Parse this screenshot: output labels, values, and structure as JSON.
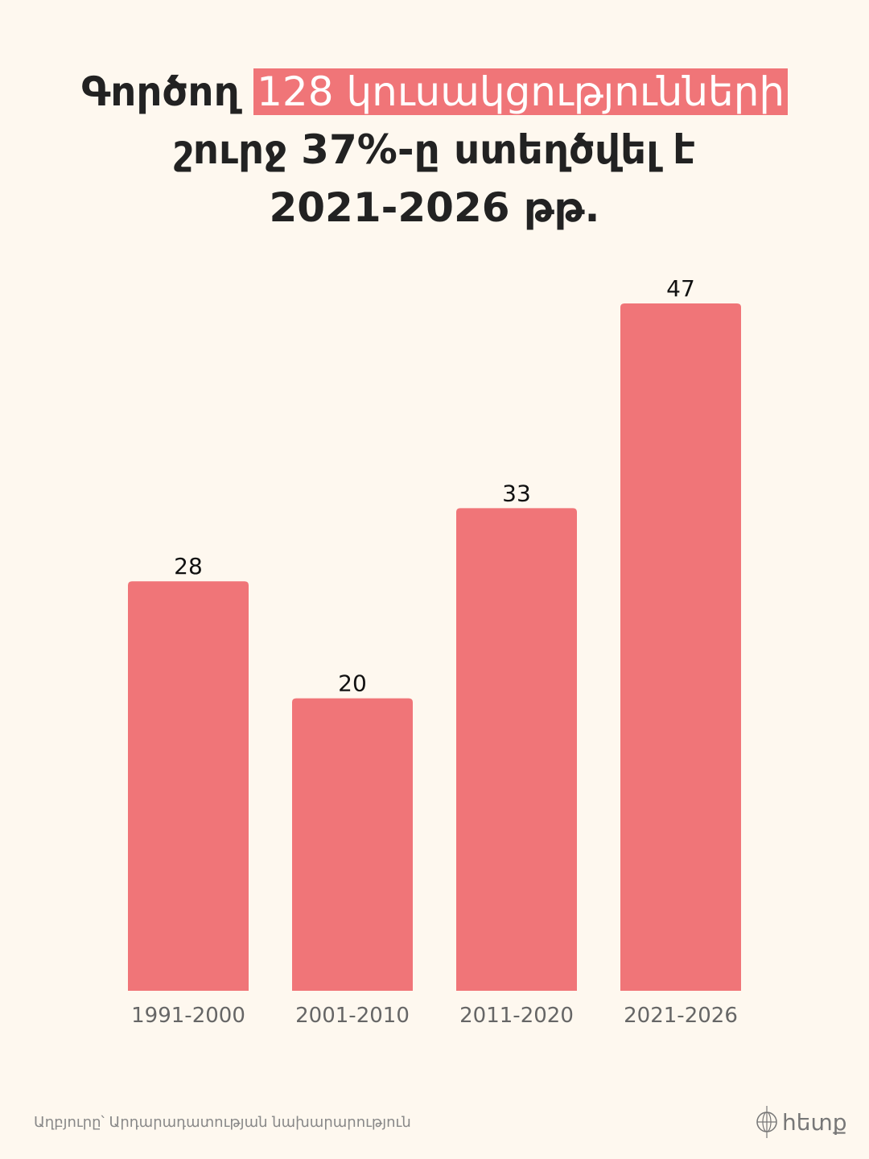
{
  "title": {
    "prefix": "Գործող",
    "highlight": "128 կուսակցությունների",
    "line2": "շուրջ 37%-ը ստեղծվել է",
    "line3": "2021-2026 թթ."
  },
  "chart_data": {
    "type": "bar",
    "categories": [
      "1991-2000",
      "2001-2010",
      "2011-2020",
      "2021-2026"
    ],
    "values": [
      28,
      20,
      33,
      47
    ],
    "ylim": [
      0,
      47
    ],
    "grid": false,
    "bar_color": "#f07578"
  },
  "footer": {
    "source": "Աղբյուրը՝  Արդարադատության նախարարություն"
  },
  "logo": {
    "text": "հետք"
  },
  "colors": {
    "background": "#fef8ef",
    "accent": "#f07578",
    "text": "#222222"
  }
}
